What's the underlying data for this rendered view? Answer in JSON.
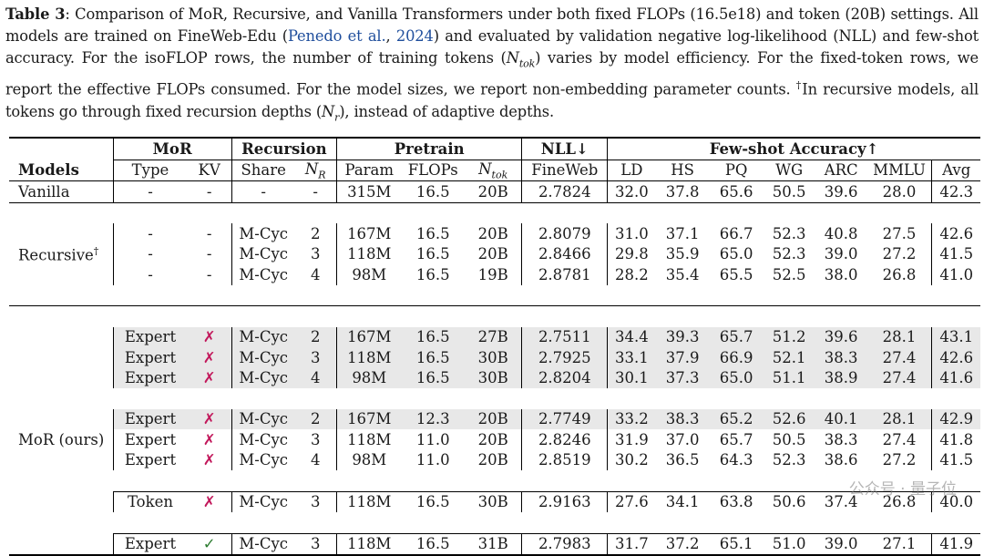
{
  "caption": {
    "label": "Table 3",
    "text_1": ": Comparison of MoR, Recursive, and Vanilla Transformers under both fixed FLOPs (16.5e18) and token (20B) settings. All models are trained on FineWeb-Edu (",
    "cite_author": "Penedo et al.",
    "cite_sep": ", ",
    "cite_year": "2024",
    "text_2": ") and evaluated by validation negative log-likelihood (NLL) and few-shot accuracy. For the isoFLOP rows, the number of training tokens (",
    "ntok_symbol": "N",
    "ntok_sub": "tok",
    "text_3": ") varies by model efficiency. For the fixed-token rows, we report the effective FLOPs consumed. For the model sizes, we report non-embedding parameter counts. ",
    "dagger": "†",
    "text_4": "In recursive models, all tokens go through fixed recursion depths (",
    "nr_symbol": "N",
    "nr_sub": "r",
    "text_5": "), instead of adaptive depths."
  },
  "headers": {
    "groups": {
      "mor": "MoR",
      "recursion": "Recursion",
      "pretrain": "Pretrain",
      "nll": "NLL↓",
      "fewshot": "Few-shot Accuracy↑"
    },
    "columns": {
      "models": "Models",
      "type": "Type",
      "kv": "KV",
      "share": "Share",
      "nr_symbol": "N",
      "nr_sub": "R",
      "param": "Param",
      "flops": "FLOPs",
      "ntok_symbol": "N",
      "ntok_sub": "tok",
      "fineweb": "FineWeb",
      "ld": "LD",
      "hs": "HS",
      "pq": "PQ",
      "wg": "WG",
      "arc": "ARC",
      "mmlu": "MMLU",
      "avg": "Avg"
    }
  },
  "group_labels": {
    "vanilla": "Vanilla",
    "recursive": "Recursive",
    "recursive_dagger": "†",
    "mor": "MoR (ours)"
  },
  "rows": {
    "vanilla": [
      "-",
      "-",
      "-",
      "-",
      "315M",
      "16.5",
      "20B",
      "2.7824",
      "32.0",
      "37.8",
      "65.6",
      "50.5",
      "39.6",
      "28.0",
      "42.3"
    ],
    "rec1": [
      "-",
      "-",
      "M-Cyc",
      "2",
      "167M",
      "16.5",
      "20B",
      "2.8079",
      "31.0",
      "37.1",
      "66.7",
      "52.3",
      "40.8",
      "27.5",
      "42.6"
    ],
    "rec2": [
      "-",
      "-",
      "M-Cyc",
      "3",
      "118M",
      "16.5",
      "20B",
      "2.8466",
      "29.8",
      "35.9",
      "65.0",
      "52.3",
      "39.0",
      "27.2",
      "41.5"
    ],
    "rec3": [
      "-",
      "-",
      "M-Cyc",
      "4",
      "98M",
      "16.5",
      "19B",
      "2.8781",
      "28.2",
      "35.4",
      "65.5",
      "52.5",
      "38.0",
      "26.8",
      "41.0"
    ],
    "mor1": [
      "Expert",
      "✗",
      "M-Cyc",
      "2",
      "167M",
      "16.5",
      "27B",
      "2.7511",
      "34.4",
      "39.3",
      "65.7",
      "51.2",
      "39.6",
      "28.1",
      "43.1"
    ],
    "mor2": [
      "Expert",
      "✗",
      "M-Cyc",
      "3",
      "118M",
      "16.5",
      "30B",
      "2.7925",
      "33.1",
      "37.9",
      "66.9",
      "52.1",
      "38.3",
      "27.4",
      "42.6"
    ],
    "mor3": [
      "Expert",
      "✗",
      "M-Cyc",
      "4",
      "98M",
      "16.5",
      "30B",
      "2.8204",
      "30.1",
      "37.3",
      "65.0",
      "51.1",
      "38.9",
      "27.4",
      "41.6"
    ],
    "mor4": [
      "Expert",
      "✗",
      "M-Cyc",
      "2",
      "167M",
      "12.3",
      "20B",
      "2.7749",
      "33.2",
      "38.3",
      "65.2",
      "52.6",
      "40.1",
      "28.1",
      "42.9"
    ],
    "mor5": [
      "Expert",
      "✗",
      "M-Cyc",
      "3",
      "118M",
      "11.0",
      "20B",
      "2.8246",
      "31.9",
      "37.0",
      "65.7",
      "50.5",
      "38.3",
      "27.4",
      "41.8"
    ],
    "mor6": [
      "Expert",
      "✗",
      "M-Cyc",
      "4",
      "98M",
      "11.0",
      "20B",
      "2.8519",
      "30.2",
      "36.5",
      "64.3",
      "52.3",
      "38.6",
      "27.2",
      "41.5"
    ],
    "mor7": [
      "Token",
      "✗",
      "M-Cyc",
      "3",
      "118M",
      "16.5",
      "30B",
      "2.9163",
      "27.6",
      "34.1",
      "63.8",
      "50.6",
      "37.4",
      "26.8",
      "40.0"
    ],
    "mor8": [
      "Expert",
      "✓",
      "M-Cyc",
      "3",
      "118M",
      "16.5",
      "31B",
      "2.7983",
      "31.7",
      "37.2",
      "65.1",
      "51.0",
      "39.0",
      "27.1",
      "41.9"
    ]
  },
  "watermark": "公众号 · 量子位"
}
